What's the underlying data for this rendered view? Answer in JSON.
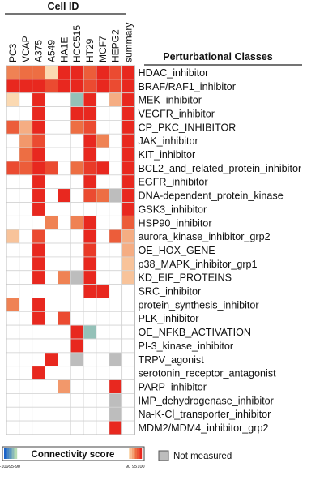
{
  "chart_data": {
    "type": "heatmap",
    "title": "",
    "column_group_label": "Cell ID",
    "row_group_label": "Perturbational Classes",
    "columns": [
      "PC3",
      "VCAP",
      "A375",
      "A549",
      "HA1E",
      "HCC515",
      "HT29",
      "MCF7",
      "HEPG2",
      "summary"
    ],
    "rows": [
      "HDAC_inhibitor",
      "BRAF/RAF1_inhibitor",
      "MEK_inhibitor",
      "VEGFR_inhibitor",
      "CP_PKC_INHIBITOR",
      "JAK_inhibitor",
      "KIT_inhibitor",
      "BCL2_and_related_protein_inhibitor",
      "EGFR_inhibitor",
      "DNA-dependent_protein_kinase",
      "GSK3_inhibitor",
      "HSP90_inhibitor",
      "aurora_kinase_inhibitor_grp2",
      "OE_HOX_GENE",
      "p38_MAPK_inhibitor_grp1",
      "KD_EIF_PROTEINS",
      "SRC_inhibitor",
      "protein_synthesis_inhibitor",
      "PLK_inhibitor",
      "OE_NFKB_ACTIVATION",
      "PI-3_kinase_inhibitor",
      "TRPV_agonist",
      "serotonin_receptor_antagonist",
      "PARP_inhibitor",
      "IMP_dehydrogenase_inhibitor",
      "Na-K-Cl_transporter_inhibitor",
      "MDM2/MDM4_inhibitor_grp2"
    ],
    "values": [
      [
        94,
        95,
        95,
        90,
        99,
        99,
        96,
        99,
        97,
        99
      ],
      [
        99,
        99,
        99,
        97,
        99,
        99,
        97,
        99,
        97,
        99
      ],
      [
        90,
        0,
        99,
        0,
        0,
        -92,
        99,
        0,
        92,
        99
      ],
      [
        0,
        0,
        99,
        0,
        0,
        99,
        99,
        0,
        0,
        99
      ],
      [
        96,
        92,
        99,
        0,
        0,
        95,
        97,
        0,
        0,
        99
      ],
      [
        0,
        93,
        97,
        0,
        0,
        0,
        99,
        94,
        0,
        99
      ],
      [
        0,
        95,
        99,
        0,
        0,
        0,
        99,
        0,
        0,
        99
      ],
      [
        97,
        96,
        99,
        97,
        0,
        95,
        98,
        99,
        0,
        99
      ],
      [
        0,
        0,
        99,
        0,
        0,
        0,
        99,
        0,
        0,
        99
      ],
      [
        0,
        0,
        99,
        0,
        99,
        0,
        97,
        95,
        "NM",
        99
      ],
      [
        0,
        0,
        99,
        0,
        0,
        0,
        0,
        0,
        0,
        99
      ],
      [
        0,
        0,
        0,
        94,
        0,
        94,
        99,
        0,
        0,
        96
      ],
      [
        91,
        0,
        97,
        0,
        0,
        0,
        99,
        0,
        96,
        92
      ],
      [
        0,
        0,
        99,
        0,
        0,
        0,
        98,
        0,
        0,
        92
      ],
      [
        0,
        0,
        99,
        0,
        0,
        0,
        99,
        0,
        0,
        91
      ],
      [
        0,
        0,
        99,
        0,
        94,
        "NM",
        99,
        0,
        0,
        91
      ],
      [
        0,
        0,
        0,
        0,
        0,
        0,
        99,
        99,
        0,
        0
      ],
      [
        94,
        0,
        99,
        0,
        0,
        0,
        0,
        0,
        0,
        0
      ],
      [
        0,
        0,
        99,
        0,
        97,
        0,
        0,
        0,
        0,
        0
      ],
      [
        0,
        0,
        0,
        0,
        0,
        99,
        -92,
        0,
        0,
        0
      ],
      [
        0,
        0,
        0,
        0,
        0,
        99,
        0,
        0,
        0,
        0
      ],
      [
        0,
        0,
        0,
        99,
        0,
        "NM",
        0,
        0,
        "NM",
        0
      ],
      [
        0,
        0,
        99,
        0,
        0,
        0,
        0,
        0,
        0,
        0
      ],
      [
        0,
        0,
        0,
        0,
        93,
        0,
        0,
        0,
        99,
        0
      ],
      [
        0,
        0,
        0,
        0,
        0,
        0,
        0,
        0,
        "NM",
        0
      ],
      [
        0,
        0,
        0,
        0,
        0,
        0,
        0,
        0,
        "NM",
        0
      ],
      [
        0,
        0,
        0,
        0,
        0,
        0,
        0,
        0,
        99,
        0
      ]
    ],
    "colorbar": {
      "title": "Connectivity score",
      "ticks": [
        "-100",
        "-95",
        "-90",
        "90",
        "95",
        "100"
      ],
      "range": [
        -100,
        100
      ]
    },
    "not_measured_label": "Not measured",
    "colors": {
      "positive_strong": "#e8281f",
      "positive_mid": "#ee7748",
      "positive_weak": "#fbd9b2",
      "negative_strong": "#1b63c8",
      "negative_weak": "#b7dcb3",
      "not_measured": "#bdbdbd",
      "empty": "#ffffff",
      "grid": "#d4d4d4"
    }
  }
}
